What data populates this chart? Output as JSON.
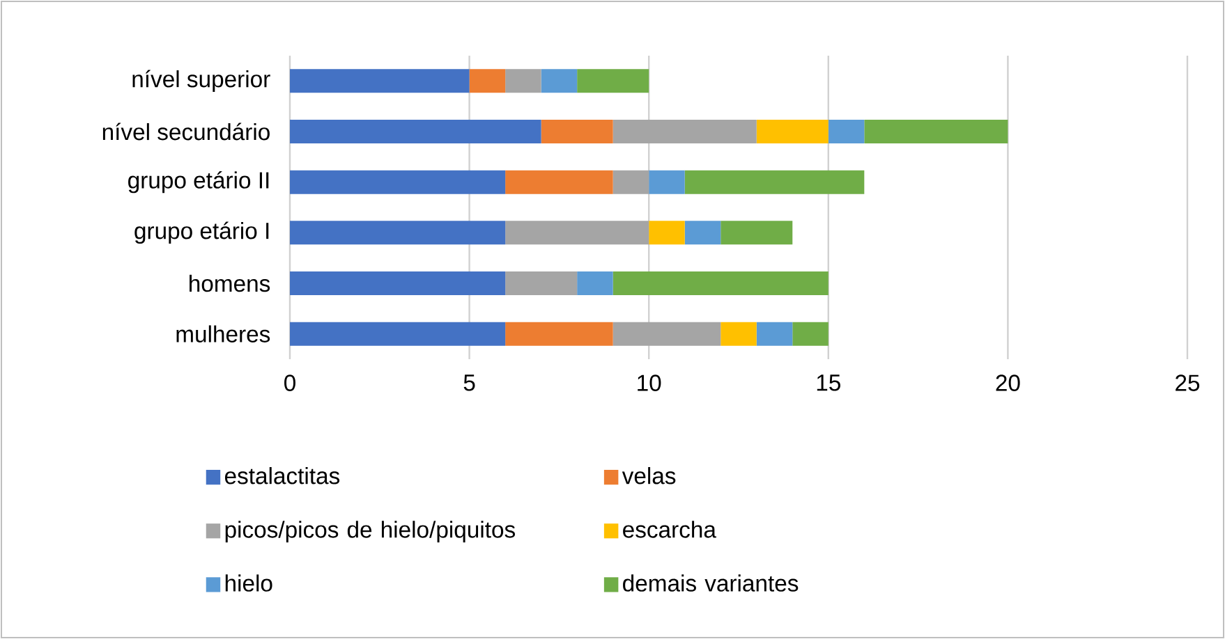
{
  "chart_data": {
    "type": "bar",
    "orientation": "horizontal",
    "stacked": true,
    "categories": [
      "nível superior",
      "nível secundário",
      "grupo etário II",
      "grupo etário I",
      "homens",
      "mulheres"
    ],
    "series": [
      {
        "name": "estalactitas",
        "color": "#4472c4",
        "values": [
          5,
          7,
          6,
          6,
          6,
          6
        ]
      },
      {
        "name": "velas",
        "color": "#ed7d31",
        "values": [
          1,
          2,
          3,
          0,
          0,
          3
        ]
      },
      {
        "name": "picos/picos de hielo/piquitos",
        "color": "#a5a5a5",
        "values": [
          1,
          4,
          1,
          4,
          2,
          3
        ]
      },
      {
        "name": "escarcha",
        "color": "#ffc000",
        "values": [
          0,
          2,
          0,
          1,
          0,
          1
        ]
      },
      {
        "name": "hielo",
        "color": "#5b9bd5",
        "values": [
          1,
          1,
          1,
          1,
          1,
          1
        ]
      },
      {
        "name": "demais variantes",
        "color": "#70ad47",
        "values": [
          2,
          4,
          5,
          2,
          6,
          1
        ]
      }
    ],
    "xlim": [
      0,
      25
    ],
    "xticks": [
      0,
      5,
      10,
      15,
      20,
      25
    ],
    "grid": "x",
    "legend": "bottom"
  }
}
